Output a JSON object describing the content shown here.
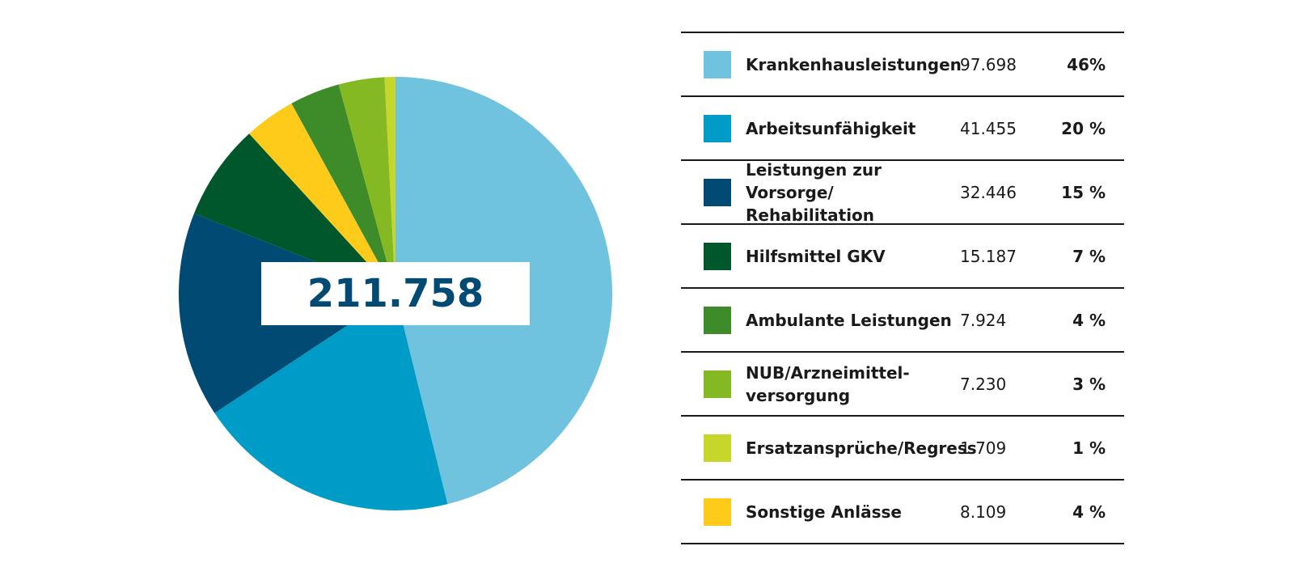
{
  "chart_data": {
    "type": "pie",
    "total_label": "211.758",
    "grid": false,
    "legend_placement": "right",
    "slices": [
      {
        "label": "Krankenhausleistungen",
        "value": 97698,
        "value_label": "97.698",
        "percent_label": "46%",
        "color": "#6fc3df"
      },
      {
        "label": "Arbeitsunfähigkeit",
        "value": 41455,
        "value_label": "41.455",
        "percent_label": "20 %",
        "color": "#009cc8"
      },
      {
        "label": "Leistungen zur Vorsorge/\nRehabilitation",
        "value": 32446,
        "value_label": "32.446",
        "percent_label": "15 %",
        "color": "#004a73"
      },
      {
        "label": "Hilfsmittel GKV",
        "value": 15187,
        "value_label": "15.187",
        "percent_label": "7 %",
        "color": "#00572b"
      },
      {
        "label": "Ambulante Leistungen",
        "value": 7924,
        "value_label": "7.924",
        "percent_label": "4 %",
        "color": "#3e8b2a"
      },
      {
        "label": "NUB/Arzneimittel-\nversorgung",
        "value": 7230,
        "value_label": "7.230",
        "percent_label": "3 %",
        "color": "#84b923"
      },
      {
        "label": "Ersatzansprüche/Regress",
        "value": 1709,
        "value_label": "1.709",
        "percent_label": "1 %",
        "color": "#c6d62a"
      },
      {
        "label": "Sonstige Anlässe",
        "value": 8109,
        "value_label": "8.109",
        "percent_label": "4 %",
        "color": "#fecb1b"
      }
    ],
    "draw_order": [
      0,
      1,
      2,
      3,
      7,
      4,
      5,
      6
    ]
  }
}
